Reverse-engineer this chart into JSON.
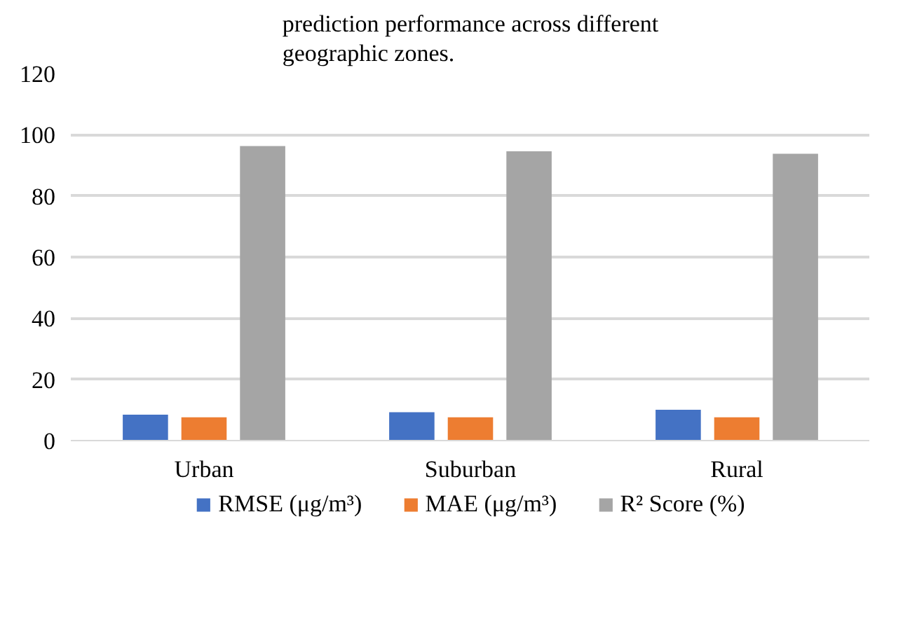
{
  "chart_data": {
    "type": "bar",
    "title": "prediction performance across different\ngeographic zones.",
    "categories": [
      "Urban",
      "Suburban",
      "Rural"
    ],
    "series": [
      {
        "name": "RMSE (μg/m³)",
        "color": "#4472c4",
        "values": [
          8.5,
          9.3,
          10.1
        ]
      },
      {
        "name": "MAE (μg/m³)",
        "color": "#ed7d31",
        "values": [
          7.6,
          7.6,
          7.6
        ]
      },
      {
        "name": "R² Score (%)",
        "color": "#a5a5a5",
        "values": [
          96.3,
          94.6,
          93.8
        ]
      }
    ],
    "ylim": [
      0,
      120
    ],
    "yticks": [
      0,
      20,
      40,
      60,
      80,
      100,
      120
    ],
    "grid": "y",
    "legend": "bottom"
  }
}
